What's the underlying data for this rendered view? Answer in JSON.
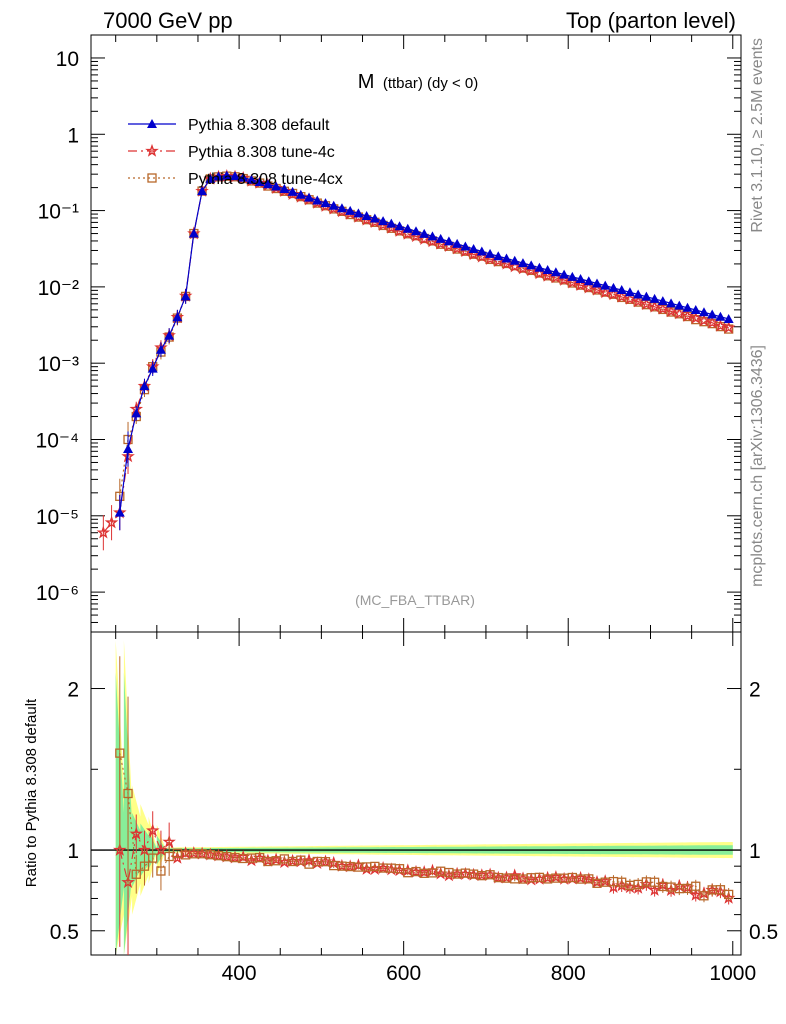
{
  "header": {
    "left": "7000 GeV pp",
    "right": "Top (parton level)"
  },
  "side": {
    "top": "Rivet 3.1.10, ≥ 2.5M events",
    "bottom": "mcplots.cern.ch [arXiv:1306.3436]"
  },
  "plot": {
    "title_main": "M",
    "title_rest": "(ttbar) (dy < 0)",
    "analysis_id": "(MC_FBA_TTBAR)",
    "ratio_ylabel": "Ratio to Pythia 8.308 default"
  },
  "colors": {
    "default": "#0000cc",
    "tune4c": "#dd3333",
    "tune4cx": "#b8682a",
    "band_yellow": "#ffff88",
    "band_green": "#88ee99"
  },
  "chart_data": [
    {
      "type": "line",
      "yscale": "log",
      "xlim": [
        220,
        1010
      ],
      "ylim": [
        3e-07,
        20
      ],
      "yticks": [
        {
          "v": 10,
          "label": "10"
        },
        {
          "v": 1,
          "label": "1"
        },
        {
          "v": 0.1,
          "label": "10⁻¹"
        },
        {
          "v": 0.01,
          "label": "10⁻²"
        },
        {
          "v": 0.001,
          "label": "10⁻³"
        },
        {
          "v": 0.0001,
          "label": "10⁻⁴"
        },
        {
          "v": 1e-05,
          "label": "10⁻⁵"
        },
        {
          "v": 1e-06,
          "label": "10⁻⁶"
        }
      ],
      "legend_position": "top-left",
      "series": [
        {
          "name": "Pythia 8.308 default",
          "key": "default",
          "marker": "triangle",
          "dash": "",
          "x_start": 255,
          "x_end": 995,
          "anchors": [
            [
              255,
              1.1e-05
            ],
            [
              265,
              7.5e-05
            ],
            [
              275,
              0.00022
            ],
            [
              285,
              0.0005
            ],
            [
              295,
              0.00085
            ],
            [
              305,
              0.0015
            ],
            [
              315,
              0.0023
            ],
            [
              325,
              0.004
            ],
            [
              335,
              0.0075
            ],
            [
              345,
              0.05
            ],
            [
              355,
              0.18
            ],
            [
              365,
              0.26
            ],
            [
              380,
              0.29
            ],
            [
              400,
              0.28
            ],
            [
              450,
              0.2
            ],
            [
              500,
              0.13
            ],
            [
              600,
              0.06
            ],
            [
              700,
              0.028
            ],
            [
              800,
              0.014
            ],
            [
              900,
              0.0072
            ],
            [
              995,
              0.0038
            ]
          ]
        },
        {
          "name": "Pythia 8.308 tune-4c",
          "key": "tune4c",
          "marker": "star",
          "dash": "9,4,2,4",
          "x_start": 235,
          "x_end": 995,
          "anchors": [
            [
              235,
              6e-06
            ],
            [
              255,
              1.1e-05
            ],
            [
              265,
              6e-05
            ],
            [
              275,
              0.00025
            ],
            [
              285,
              0.0005
            ],
            [
              295,
              0.0009
            ],
            [
              305,
              0.0016
            ],
            [
              315,
              0.0023
            ],
            [
              325,
              0.004
            ],
            [
              335,
              0.0076
            ],
            [
              345,
              0.05
            ],
            [
              355,
              0.18
            ],
            [
              365,
              0.26
            ],
            [
              380,
              0.285
            ],
            [
              400,
              0.275
            ],
            [
              450,
              0.19
            ],
            [
              500,
              0.12
            ],
            [
              600,
              0.052
            ],
            [
              700,
              0.024
            ],
            [
              800,
              0.0118
            ],
            [
              900,
              0.0057
            ],
            [
              995,
              0.0029
            ]
          ]
        },
        {
          "name": "Pythia 8.308 tune-4cx",
          "key": "tune4cx",
          "marker": "square",
          "dash": "2,3",
          "x_start": 255,
          "x_end": 995,
          "anchors": [
            [
              255,
              1.8e-05
            ],
            [
              265,
              0.0001
            ],
            [
              275,
              0.0002
            ],
            [
              285,
              0.00045
            ],
            [
              295,
              0.0009
            ],
            [
              305,
              0.0014
            ],
            [
              315,
              0.0022
            ],
            [
              325,
              0.0039
            ],
            [
              335,
              0.0075
            ],
            [
              345,
              0.05
            ],
            [
              355,
              0.18
            ],
            [
              365,
              0.26
            ],
            [
              380,
              0.285
            ],
            [
              400,
              0.275
            ],
            [
              450,
              0.19
            ],
            [
              500,
              0.12
            ],
            [
              600,
              0.052
            ],
            [
              700,
              0.024
            ],
            [
              800,
              0.0118
            ],
            [
              900,
              0.0057
            ],
            [
              995,
              0.0028
            ]
          ]
        }
      ]
    },
    {
      "type": "line",
      "ylabel": "Ratio to Pythia 8.308 default",
      "xlim": [
        220,
        1010
      ],
      "ylim": [
        0.35,
        2.35
      ],
      "xticks": [
        400,
        600,
        800,
        1000
      ],
      "yticks": [
        {
          "v": 0.5,
          "label": "0.5"
        },
        {
          "v": 1,
          "label": "1"
        },
        {
          "v": 2,
          "label": "2"
        }
      ],
      "reference_line": 1,
      "series": [
        {
          "name": "Pythia 8.308 tune-4c",
          "key": "tune4c",
          "x_start": 255,
          "x_end": 995,
          "anchors": [
            [
              255,
              1.0
            ],
            [
              265,
              0.8
            ],
            [
              275,
              1.1
            ],
            [
              285,
              1.0
            ],
            [
              295,
              1.12
            ],
            [
              305,
              1.0
            ],
            [
              315,
              1.05
            ],
            [
              325,
              0.95
            ],
            [
              335,
              0.98
            ],
            [
              350,
              0.98
            ],
            [
              400,
              0.95
            ],
            [
              500,
              0.92
            ],
            [
              600,
              0.87
            ],
            [
              700,
              0.84
            ],
            [
              800,
              0.82
            ],
            [
              900,
              0.78
            ],
            [
              995,
              0.72
            ]
          ]
        },
        {
          "name": "Pythia 8.308 tune-4cx",
          "key": "tune4cx",
          "x_start": 255,
          "x_end": 995,
          "anchors": [
            [
              255,
              1.6
            ],
            [
              265,
              1.35
            ],
            [
              275,
              0.85
            ],
            [
              285,
              0.9
            ],
            [
              295,
              0.95
            ],
            [
              305,
              0.87
            ],
            [
              315,
              0.96
            ],
            [
              325,
              0.98
            ],
            [
              335,
              0.97
            ],
            [
              350,
              0.98
            ],
            [
              400,
              0.95
            ],
            [
              500,
              0.92
            ],
            [
              600,
              0.87
            ],
            [
              700,
              0.84
            ],
            [
              800,
              0.82
            ],
            [
              900,
              0.78
            ],
            [
              995,
              0.73
            ]
          ]
        }
      ]
    }
  ]
}
